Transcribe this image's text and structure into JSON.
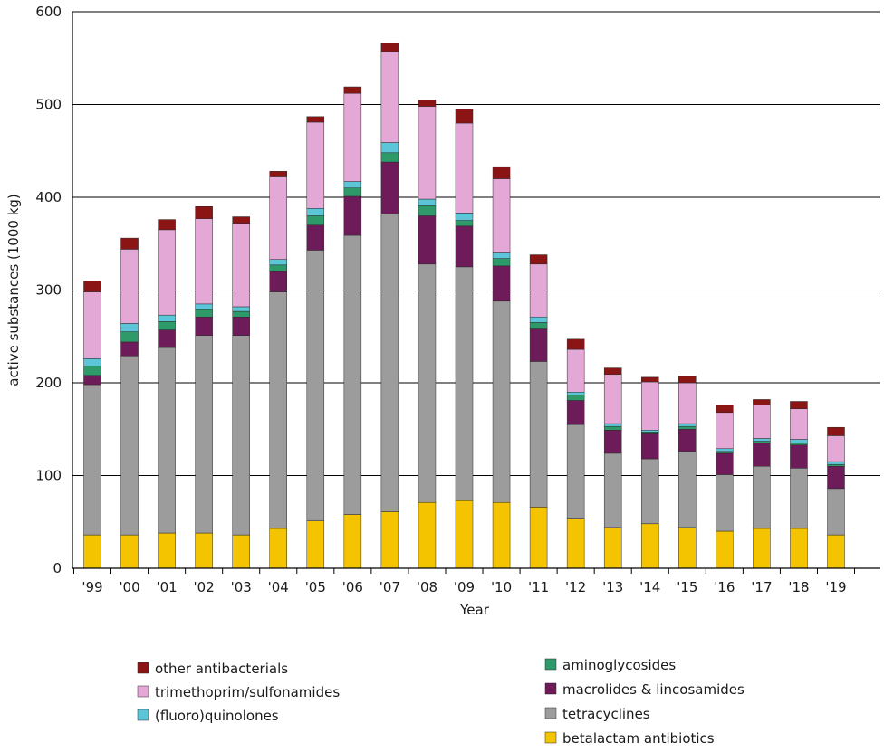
{
  "chart_data": {
    "type": "bar",
    "stacked": true,
    "title": "",
    "xlabel": "Year",
    "ylabel": "active substances (1000 kg)",
    "ylim": [
      0,
      600
    ],
    "yticks": [
      "0",
      "100",
      "200",
      "300",
      "400",
      "500",
      "600"
    ],
    "grid": true,
    "categories": [
      "'99",
      "'00",
      "'01",
      "'02",
      "'03",
      "'04",
      "'05",
      "'06",
      "'07",
      "'08",
      "'09",
      "'10",
      "'11",
      "'12",
      "'13",
      "'14",
      "'15",
      "'16",
      "'17",
      "'18",
      "'19"
    ],
    "series": [
      {
        "name": "betalactam antibiotics",
        "color": "#f5c400",
        "values": [
          36,
          36,
          38,
          38,
          36,
          43,
          51,
          58,
          61,
          71,
          73,
          71,
          66,
          54,
          44,
          48,
          44,
          40,
          43,
          43,
          36
        ]
      },
      {
        "name": "tetracyclines",
        "color": "#9c9c9c",
        "values": [
          162,
          193,
          200,
          213,
          215,
          255,
          292,
          301,
          321,
          257,
          252,
          217,
          157,
          101,
          80,
          70,
          82,
          61,
          67,
          65,
          50
        ]
      },
      {
        "name": "macrolides & lincosamides",
        "color": "#6e1b5a",
        "values": [
          10,
          15,
          19,
          20,
          20,
          22,
          27,
          42,
          56,
          52,
          44,
          38,
          35,
          26,
          25,
          27,
          24,
          23,
          25,
          25,
          24
        ]
      },
      {
        "name": "aminoglycosides",
        "color": "#2e9a6a",
        "values": [
          10,
          11,
          9,
          8,
          6,
          7,
          10,
          9,
          10,
          11,
          6,
          8,
          7,
          6,
          4,
          2,
          3,
          2,
          2,
          2,
          2
        ]
      },
      {
        "name": "(fluoro)quinolones",
        "color": "#5cc6d8",
        "values": [
          8,
          9,
          7,
          6,
          5,
          6,
          8,
          7,
          11,
          7,
          8,
          6,
          6,
          3,
          3,
          2,
          3,
          3,
          3,
          4,
          3
        ]
      },
      {
        "name": "trimethoprim/sulfonamides",
        "color": "#e4a8d6",
        "values": [
          72,
          80,
          92,
          92,
          90,
          89,
          93,
          95,
          98,
          100,
          97,
          80,
          57,
          46,
          53,
          52,
          44,
          39,
          36,
          33,
          28
        ]
      },
      {
        "name": "other antibacterials",
        "color": "#8b1414",
        "values": [
          12,
          12,
          11,
          13,
          7,
          6,
          6,
          7,
          9,
          7,
          15,
          13,
          10,
          11,
          7,
          5,
          7,
          8,
          6,
          8,
          9
        ]
      }
    ],
    "legend": {
      "placement": "bottom",
      "left_column": [
        "other antibacterials",
        "trimethoprim/sulfonamides",
        "(fluoro)quinolones"
      ],
      "right_column": [
        "aminoglycosides",
        "macrolides & lincosamides",
        "tetracyclines",
        "betalactam antibiotics"
      ]
    }
  }
}
